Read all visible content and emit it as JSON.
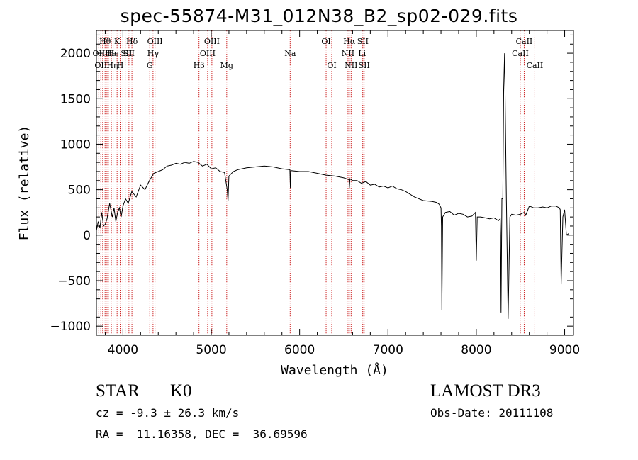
{
  "page": {
    "title": "spec-55874-M31_012N38_B2_sp02-029.fits",
    "object_class": "STAR",
    "subclass": "K0",
    "survey": "LAMOST DR3",
    "cz": "cz = -9.3 ± 26.3 km/s",
    "obs_date": "Obs-Date: 20111108",
    "coords": "RA =  11.16358, DEC =  36.69596"
  },
  "colors": {
    "line_marker": "#cc2222",
    "spectrum": "#000000",
    "axis": "#000000"
  },
  "chart_data": {
    "type": "line",
    "title": "spec-55874-M31_012N38_B2_sp02-029.fits",
    "xlabel": "Wavelength (Å)",
    "ylabel": "Flux (relative)",
    "xlim": [
      3700,
      9100
    ],
    "ylim": [
      -1100,
      2250
    ],
    "xticks": [
      4000,
      5000,
      6000,
      7000,
      8000,
      9000
    ],
    "yticks": [
      -1000,
      -500,
      0,
      500,
      1000,
      1500,
      2000
    ],
    "series": [
      {
        "name": "spectrum",
        "x": [
          3700,
          3720,
          3740,
          3760,
          3780,
          3800,
          3820,
          3850,
          3880,
          3900,
          3920,
          3940,
          3960,
          3980,
          4000,
          4030,
          4060,
          4100,
          4150,
          4200,
          4250,
          4300,
          4350,
          4400,
          4450,
          4500,
          4550,
          4600,
          4650,
          4700,
          4750,
          4800,
          4850,
          4900,
          4950,
          5000,
          5050,
          5100,
          5150,
          5180,
          5190,
          5200,
          5250,
          5300,
          5400,
          5500,
          5600,
          5700,
          5800,
          5890,
          5895,
          5900,
          6000,
          6100,
          6200,
          6300,
          6400,
          6500,
          6560,
          6563,
          6570,
          6600,
          6650,
          6700,
          6750,
          6800,
          6850,
          6900,
          6950,
          7000,
          7050,
          7100,
          7150,
          7200,
          7300,
          7400,
          7500,
          7550,
          7580,
          7600,
          7605,
          7610,
          7620,
          7650,
          7700,
          7750,
          7800,
          7850,
          7900,
          7950,
          7990,
          8000,
          8010,
          8050,
          8100,
          8150,
          8200,
          8250,
          8270,
          8275,
          8280,
          8290,
          8300,
          8310,
          8320,
          8340,
          8360,
          8380,
          8400,
          8450,
          8500,
          8540,
          8550,
          8560,
          8600,
          8650,
          8700,
          8750,
          8800,
          8850,
          8900,
          8940,
          8950,
          8960,
          8980,
          9000,
          9020,
          9050
        ],
        "y": [
          50,
          150,
          80,
          250,
          100,
          120,
          180,
          350,
          200,
          300,
          150,
          250,
          300,
          200,
          320,
          400,
          350,
          480,
          420,
          550,
          500,
          600,
          680,
          700,
          720,
          760,
          770,
          790,
          780,
          800,
          790,
          810,
          800,
          760,
          780,
          730,
          740,
          700,
          690,
          500,
          380,
          650,
          700,
          720,
          740,
          750,
          760,
          750,
          730,
          720,
          520,
          710,
          700,
          700,
          680,
          660,
          650,
          630,
          610,
          520,
          620,
          600,
          600,
          570,
          590,
          550,
          560,
          530,
          540,
          520,
          540,
          510,
          500,
          480,
          420,
          380,
          370,
          360,
          340,
          300,
          100,
          -820,
          200,
          250,
          260,
          220,
          240,
          230,
          200,
          210,
          250,
          -280,
          200,
          200,
          190,
          180,
          190,
          160,
          180,
          0,
          -850,
          400,
          400,
          1600,
          2000,
          400,
          -920,
          200,
          230,
          220,
          230,
          250,
          240,
          220,
          320,
          300,
          300,
          310,
          300,
          320,
          320,
          300,
          280,
          -540,
          200,
          280,
          0,
          20
        ]
      }
    ],
    "line_markers": [
      {
        "wavelength": 3727,
        "label": "OII",
        "row": 2
      },
      {
        "wavelength": 3750,
        "label": "OII",
        "row": 3
      },
      {
        "wavelength": 3771,
        "label": "",
        "row": 0
      },
      {
        "wavelength": 3798,
        "label": "Hθ",
        "row": 1
      },
      {
        "wavelength": 3820,
        "label": "",
        "row": 0
      },
      {
        "wavelength": 3835,
        "label": "",
        "row": 0
      },
      {
        "wavelength": 3869,
        "label": "",
        "row": 0
      },
      {
        "wavelength": 3889,
        "label": "He",
        "row": 2
      },
      {
        "wavelength": 3934,
        "label": "K",
        "row": 1
      },
      {
        "wavelength": 3969,
        "label": "H",
        "row": 3
      },
      {
        "wavelength": 4000,
        "label": "",
        "row": 0
      },
      {
        "wavelength": 4026,
        "label": "",
        "row": 0
      },
      {
        "wavelength": 4068,
        "label": "SII",
        "row": 2
      },
      {
        "wavelength": 4102,
        "label": "Hδ",
        "row": 1
      },
      {
        "wavelength": 4304,
        "label": "G",
        "row": 3
      },
      {
        "wavelength": 4341,
        "label": "Hγ",
        "row": 2
      },
      {
        "wavelength": 4363,
        "label": "OIII",
        "row": 1
      },
      {
        "wavelength": 4861,
        "label": "Hβ",
        "row": 3
      },
      {
        "wavelength": 4959,
        "label": "OIII",
        "row": 2
      },
      {
        "wavelength": 5007,
        "label": "OIII",
        "row": 1
      },
      {
        "wavelength": 5175,
        "label": "Mg",
        "row": 3
      },
      {
        "wavelength": 5893,
        "label": "Na",
        "row": 2
      },
      {
        "wavelength": 6300,
        "label": "OI",
        "row": 1
      },
      {
        "wavelength": 6364,
        "label": "OI",
        "row": 3
      },
      {
        "wavelength": 6548,
        "label": "NII",
        "row": 2
      },
      {
        "wavelength": 6563,
        "label": "Hα",
        "row": 1
      },
      {
        "wavelength": 6583,
        "label": "NII",
        "row": 3
      },
      {
        "wavelength": 6707,
        "label": "Li",
        "row": 2
      },
      {
        "wavelength": 6716,
        "label": "SII",
        "row": 1
      },
      {
        "wavelength": 6731,
        "label": "SII",
        "row": 3
      },
      {
        "wavelength": 8498,
        "label": "CaII",
        "row": 2
      },
      {
        "wavelength": 8542,
        "label": "CaII",
        "row": 1
      },
      {
        "wavelength": 8662,
        "label": "CaII",
        "row": 3
      }
    ],
    "extra_label_texts": [
      "Hε",
      "Hη",
      "SII"
    ]
  }
}
